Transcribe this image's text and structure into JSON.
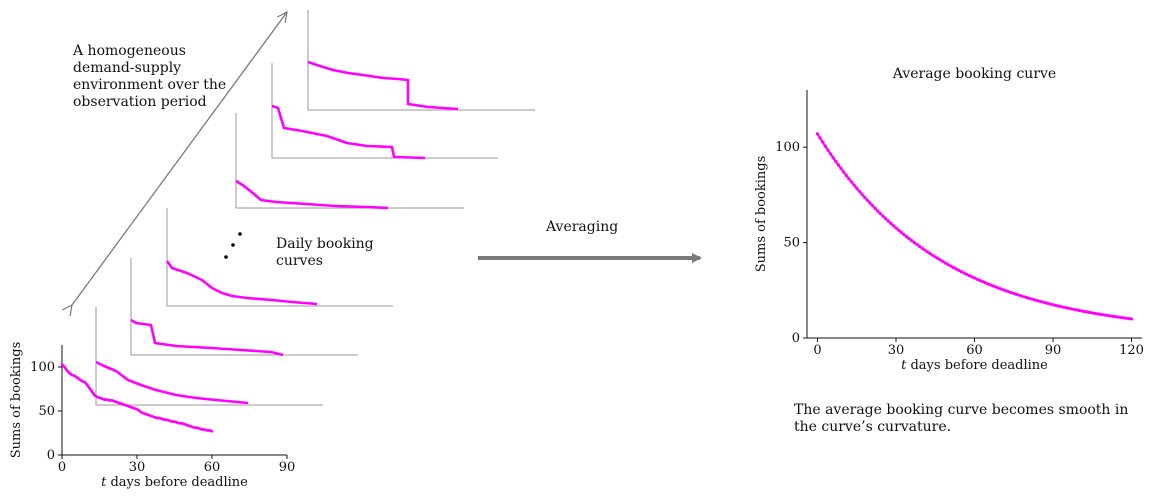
{
  "left_text": {
    "environment": "A homogeneous demand-supply environment over the observation period",
    "daily": "Daily booking curves"
  },
  "arrow_label": "Averaging",
  "caption": "The average booking curve becomes smooth in the curve’s curvature.",
  "colors": {
    "curve": "#ff00ff",
    "axis": "#9a9a9a",
    "arrow": "#7a7a7a"
  },
  "chart_data": [
    {
      "type": "line",
      "title": "",
      "xlabel": "t days before deadline",
      "ylabel": "Sums of bookings",
      "xlim": [
        0,
        90
      ],
      "ylim": [
        0,
        125
      ],
      "xticks": [
        "0",
        "30",
        "60",
        "90"
      ],
      "yticks": [
        "0",
        "50",
        "100"
      ],
      "series": [
        {
          "x": [
            0,
            1,
            2,
            3,
            4,
            5,
            6,
            7,
            8,
            9,
            10,
            11,
            12,
            13,
            14,
            15,
            16,
            17,
            18,
            19,
            20,
            21,
            22,
            23,
            24,
            25,
            26,
            27,
            28,
            29,
            30,
            31,
            32,
            33,
            34,
            35,
            36,
            37,
            38,
            39,
            40,
            41,
            42,
            43,
            44,
            45,
            46,
            47,
            48,
            49,
            50,
            51,
            52,
            53,
            54,
            55,
            56,
            57,
            58,
            59,
            60
          ],
          "y": [
            103,
            100,
            96,
            93,
            91,
            90,
            88,
            86,
            84,
            83,
            80,
            76,
            72,
            68,
            66,
            65,
            64,
            63,
            63,
            62,
            62,
            61,
            60,
            59,
            58,
            57,
            56,
            55,
            54,
            53,
            52,
            50,
            48,
            47,
            46,
            45,
            44,
            43,
            42,
            42,
            41,
            40,
            40,
            39,
            38,
            38,
            37,
            36,
            36,
            35,
            34,
            33,
            32,
            31,
            31,
            30,
            29,
            29,
            28,
            28,
            27
          ]
        }
      ]
    },
    {
      "type": "line",
      "title": "Average booking curve",
      "xlabel": "t days before deadline",
      "ylabel": "Sums of bookings",
      "xlim": [
        -4,
        124
      ],
      "ylim": [
        0,
        130
      ],
      "xticks": [
        "0",
        "30",
        "60",
        "90",
        "120"
      ],
      "yticks": [
        "0",
        "50",
        "100"
      ],
      "series": [
        {
          "x": [
            0,
            120
          ],
          "y": [
            107,
            10
          ],
          "note_decay": 0.021
        }
      ]
    }
  ]
}
